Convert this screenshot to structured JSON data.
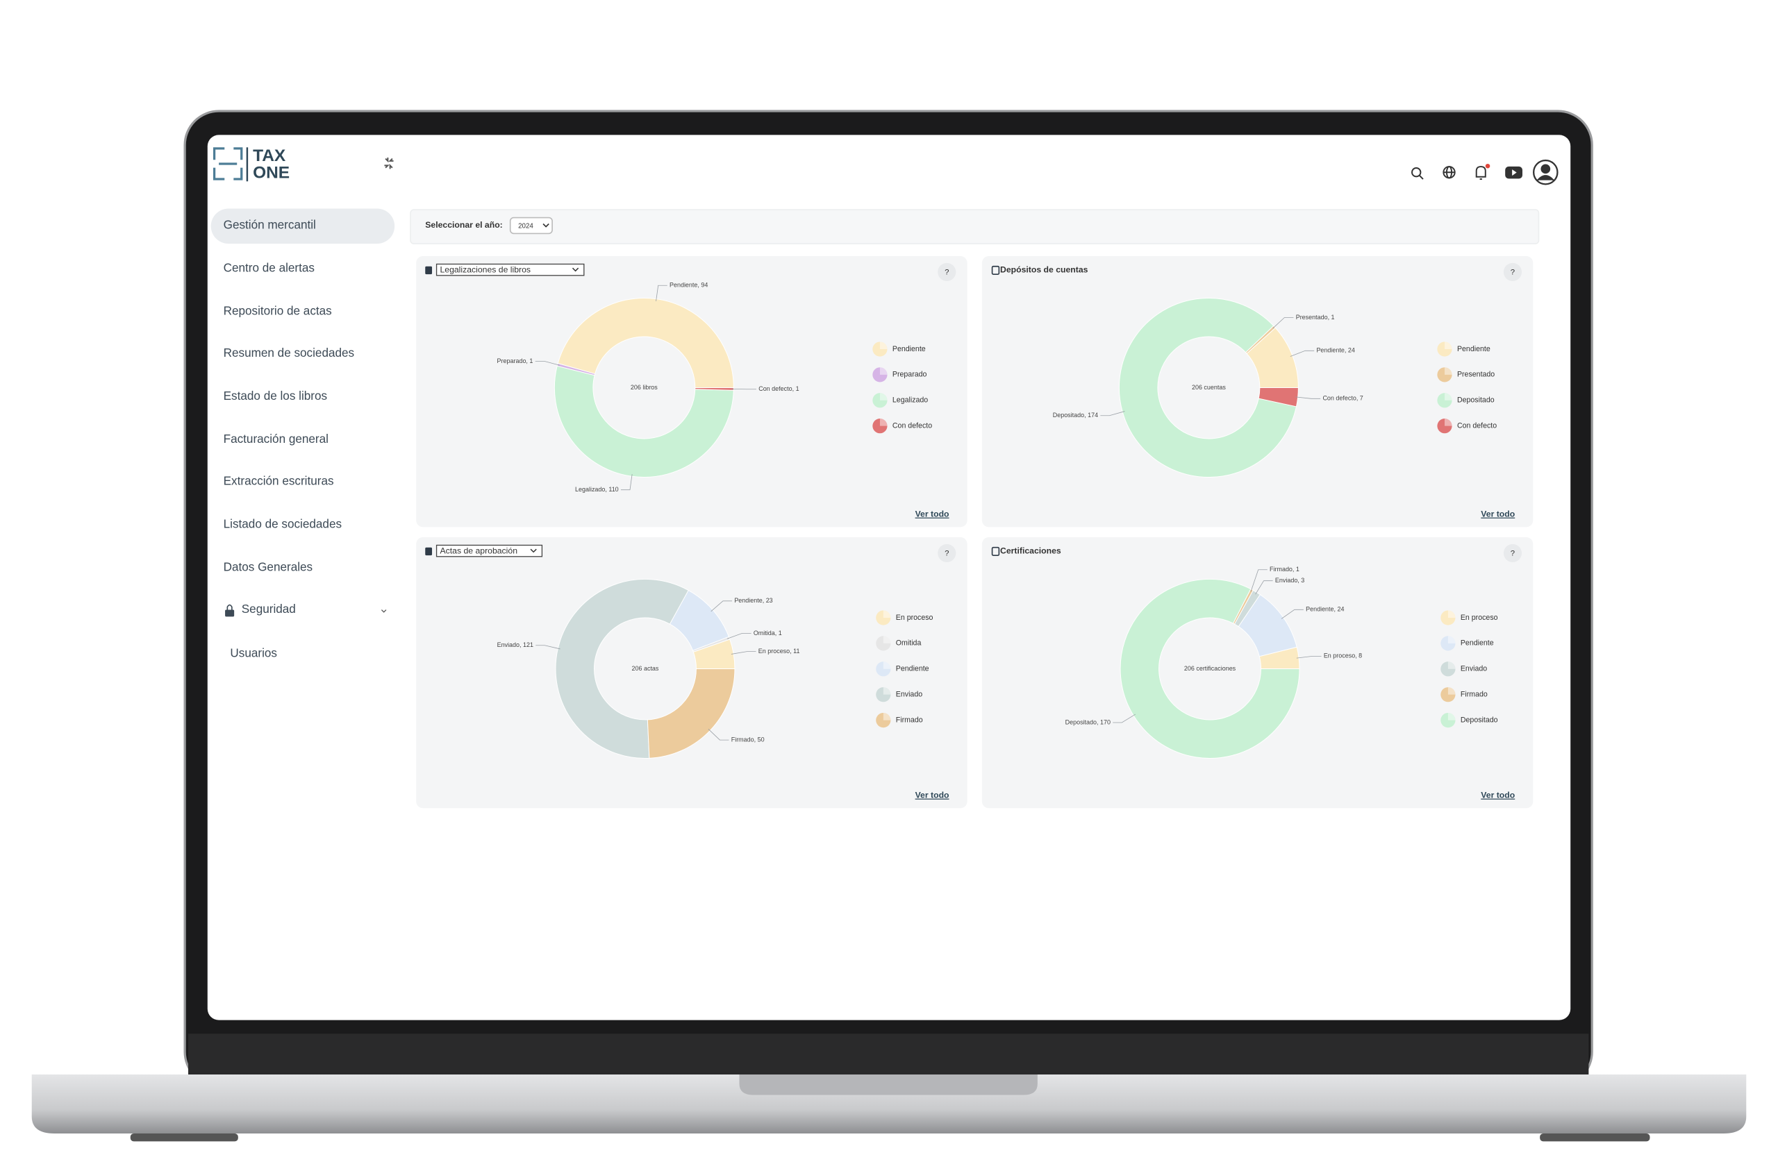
{
  "header": {
    "logo": [
      "TAX",
      "ONE"
    ]
  },
  "sidebar": {
    "items": [
      "Gestión mercantil",
      "Centro de alertas",
      "Repositorio de actas",
      "Resumen de sociedades",
      "Estado de los libros",
      "Facturación general",
      "Extracción escrituras",
      "Listado de sociedades",
      "Datos Generales"
    ],
    "section": "Seguridad",
    "subitems": [
      "Usuarios"
    ]
  },
  "year_filter": {
    "label": "Seleccionar el año:",
    "value": "2024"
  },
  "chart_data": [
    {
      "type": "donut",
      "title": "Legalizaciones de libros",
      "center_label": "206 libros",
      "categories": [
        "Pendiente",
        "Preparado",
        "Legalizado",
        "Con defecto"
      ],
      "values": [
        94,
        1,
        110,
        1
      ],
      "value_labels": [
        "Pendiente, 94",
        "Preparado, 1",
        "Legalizado, 110",
        "Con defecto, 1"
      ],
      "colors": [
        "#fbeac2",
        "#d6b4e6",
        "#c9f1d5",
        "#e07474"
      ],
      "help": "?",
      "link": "Ver todo"
    },
    {
      "type": "donut",
      "title": "Depósitos de cuentas",
      "center_label": "206 cuentas",
      "categories": [
        "Pendiente",
        "Presentado",
        "Depositado",
        "Con defecto"
      ],
      "values": [
        24,
        1,
        174,
        7
      ],
      "value_labels": [
        "Pendiente, 24",
        "Presentado, 1",
        "Depositado, 174",
        "Con defecto, 7"
      ],
      "colors": [
        "#fbeac2",
        "#eccb9c",
        "#c9f1d5",
        "#e07474"
      ],
      "help": "?",
      "link": "Ver todo"
    },
    {
      "type": "donut",
      "title": "Actas de aprobación",
      "center_label": "206 actas",
      "categories": [
        "En proceso",
        "Omitida",
        "Pendiente",
        "Enviado",
        "Firmado"
      ],
      "values": [
        11,
        1,
        23,
        121,
        50
      ],
      "value_labels": [
        "En proceso, 11",
        "Omitida, 1",
        "Pendiente, 23",
        "Enviado, 121",
        "Firmado, 50"
      ],
      "colors": [
        "#fbeac2",
        "#e6e6e6",
        "#dde8f6",
        "#cfdcdb",
        "#eccb9c"
      ],
      "help": "?",
      "link": "Ver todo"
    },
    {
      "type": "donut",
      "title": "Certificaciones",
      "center_label": "206 certificaciones",
      "categories": [
        "En proceso",
        "Pendiente",
        "Enviado",
        "Firmado",
        "Depositado"
      ],
      "values": [
        8,
        24,
        3,
        1,
        170
      ],
      "value_labels": [
        "En proceso, 8",
        "Pendiente, 24",
        "Enviado, 3",
        "Firmado, 1",
        "Depositado, 170"
      ],
      "colors": [
        "#fbeac2",
        "#dde8f6",
        "#cfdcdb",
        "#eccb9c",
        "#c9f1d5"
      ],
      "help": "?",
      "link": "Ver todo"
    }
  ]
}
